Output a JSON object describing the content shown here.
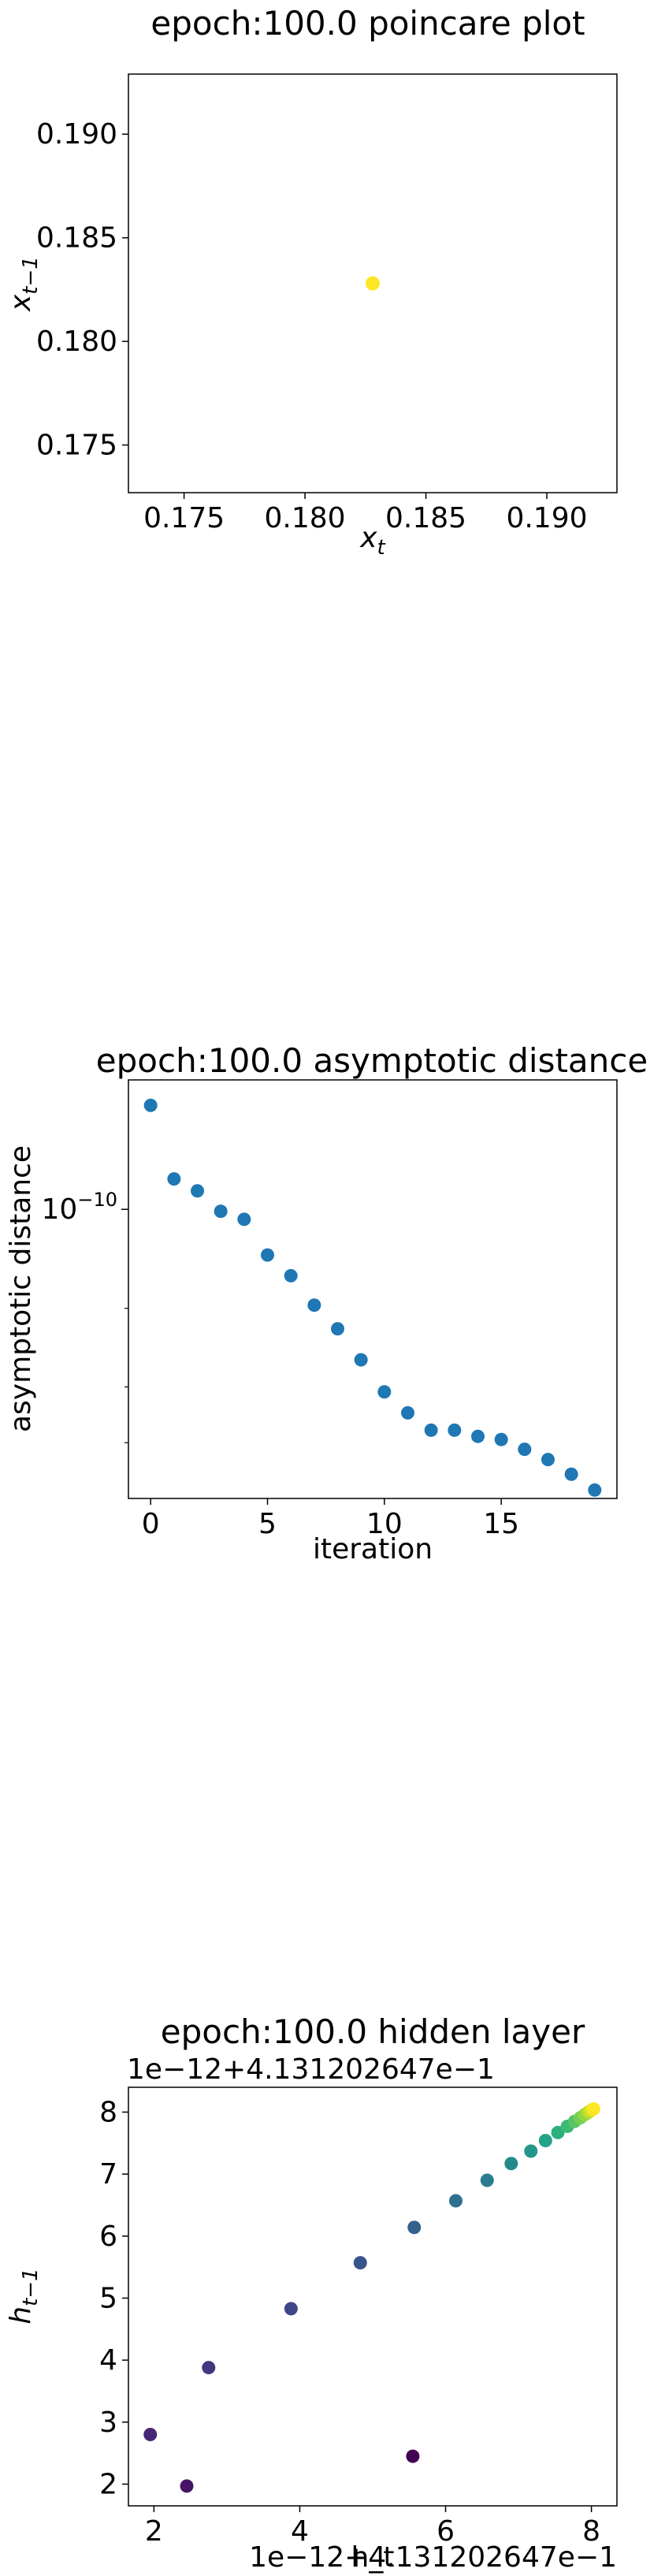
{
  "chart_data": [
    {
      "type": "scatter",
      "title": "epoch:100.0 poincare plot",
      "xlabel": "x",
      "xlabel_sub": "t",
      "ylabel": "x",
      "ylabel_sub": "t−1",
      "xlim": [
        0.1727,
        0.1929
      ],
      "ylim": [
        0.1727,
        0.1929
      ],
      "x_ticks": [
        0.175,
        0.18,
        0.185,
        0.19
      ],
      "x_tick_labels": [
        "0.175",
        "0.180",
        "0.185",
        "0.190"
      ],
      "y_ticks": [
        0.175,
        0.18,
        0.185,
        0.19
      ],
      "y_tick_labels": [
        "0.175",
        "0.180",
        "0.185",
        "0.190"
      ],
      "grid": false,
      "point_color": "#fde725",
      "points": [
        {
          "x": 0.1828,
          "y": 0.1828
        }
      ]
    },
    {
      "type": "scatter",
      "title": "epoch:100.0 asymptotic distance",
      "xlabel": "iteration",
      "ylabel": "asymptotic distance",
      "y_scale": "log",
      "xlim": [
        -0.95,
        19.95
      ],
      "ylim": [
        2.25e-11,
        1.95e-10
      ],
      "x_ticks": [
        0,
        5,
        10,
        15
      ],
      "x_tick_labels": [
        "0",
        "5",
        "10",
        "15"
      ],
      "y_major_tick": 1e-10,
      "y_major_tick_base": "10",
      "y_major_tick_exp": "−10",
      "grid": false,
      "point_color": "#1f77b4",
      "x": [
        0,
        1,
        2,
        3,
        4,
        5,
        6,
        7,
        8,
        9,
        10,
        11,
        12,
        13,
        14,
        15,
        16,
        17,
        18,
        19
      ],
      "y": [
        1.71e-10,
        1.17e-10,
        1.1e-10,
        9.9e-11,
        9.5e-11,
        7.9e-11,
        7.1e-11,
        6.1e-11,
        5.4e-11,
        4.6e-11,
        3.9e-11,
        3.5e-11,
        3.2e-11,
        3.2e-11,
        3.1e-11,
        3.05e-11,
        2.9e-11,
        2.75e-11,
        2.55e-11,
        2.35e-11
      ]
    },
    {
      "type": "scatter",
      "title": "epoch:100.0 hidden layer",
      "xlabel": "h_t",
      "ylabel": "h",
      "ylabel_sub": "t−1",
      "x_offset_text": "1e−12+4.131202647e−1",
      "y_offset_text": "1e−12+4.131202647e−1",
      "xlim": [
        1.65,
        8.35
      ],
      "ylim": [
        1.65,
        8.4
      ],
      "x_ticks": [
        2,
        4,
        6,
        8
      ],
      "x_tick_labels": [
        "2",
        "4",
        "6",
        "8"
      ],
      "y_ticks": [
        2,
        3,
        4,
        5,
        6,
        7,
        8
      ],
      "y_tick_labels": [
        "2",
        "3",
        "4",
        "5",
        "6",
        "7",
        "8"
      ],
      "grid": false,
      "colormap": "viridis",
      "points": [
        {
          "x": 5.55,
          "y": 2.45
        },
        {
          "x": 2.45,
          "y": 1.97
        },
        {
          "x": 1.95,
          "y": 2.8
        },
        {
          "x": 2.75,
          "y": 3.88
        },
        {
          "x": 3.88,
          "y": 4.83
        },
        {
          "x": 4.83,
          "y": 5.57
        },
        {
          "x": 5.57,
          "y": 6.14
        },
        {
          "x": 6.14,
          "y": 6.57
        },
        {
          "x": 6.57,
          "y": 6.9
        },
        {
          "x": 6.9,
          "y": 7.17
        },
        {
          "x": 7.17,
          "y": 7.37
        },
        {
          "x": 7.37,
          "y": 7.54
        },
        {
          "x": 7.54,
          "y": 7.67
        },
        {
          "x": 7.67,
          "y": 7.77
        },
        {
          "x": 7.77,
          "y": 7.85
        },
        {
          "x": 7.85,
          "y": 7.91
        },
        {
          "x": 7.91,
          "y": 7.96
        },
        {
          "x": 7.96,
          "y": 8.0
        },
        {
          "x": 8.0,
          "y": 8.03
        },
        {
          "x": 8.03,
          "y": 8.05
        }
      ]
    }
  ]
}
